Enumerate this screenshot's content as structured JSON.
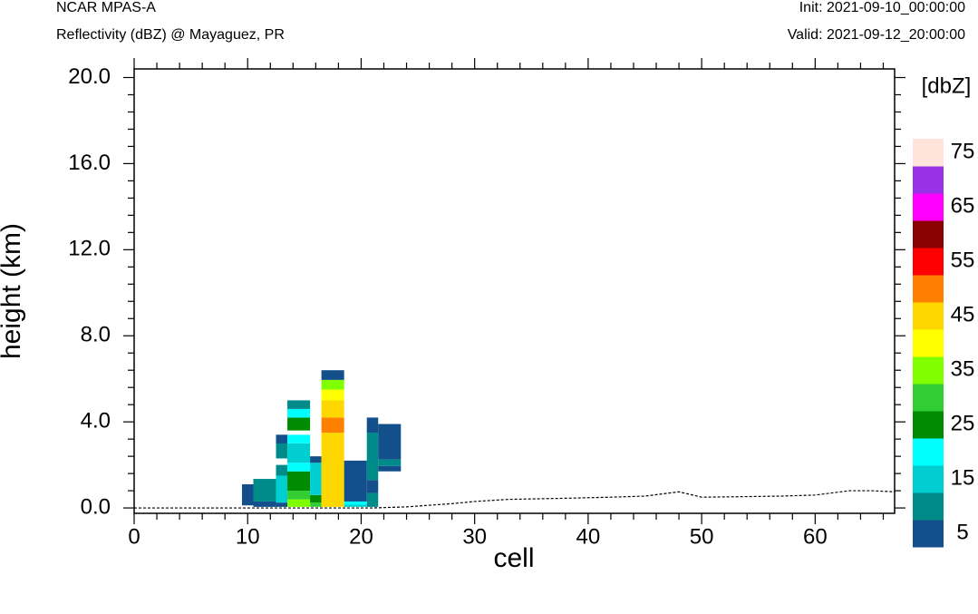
{
  "header": {
    "model": "NCAR MPAS-A",
    "subtitle": "Reflectivity (dBZ) @ Mayaguez, PR",
    "init": "Init: 2021-09-10_00:00:00",
    "valid": "Valid: 2021-09-12_20:00:00"
  },
  "chart_data": {
    "type": "heatmap",
    "title": "Reflectivity (dBZ) @ Mayaguez, PR",
    "xlabel": "cell",
    "ylabel": "height (km)",
    "xlim": [
      0,
      67
    ],
    "ylim": [
      -0.25,
      20.4
    ],
    "xticks": [
      "0",
      "10",
      "20",
      "30",
      "40",
      "50",
      "60"
    ],
    "yticks": [
      "0.0",
      "4.0",
      "8.0",
      "12.0",
      "16.0",
      "20.0"
    ],
    "colorbar": {
      "label": "[dbZ]",
      "levels": [
        5,
        10,
        15,
        20,
        25,
        30,
        35,
        40,
        45,
        50,
        55,
        60,
        65,
        70,
        75
      ],
      "tick_labels": [
        "5",
        "15",
        "25",
        "35",
        "45",
        "55",
        "65",
        "75"
      ],
      "colors": [
        "#134f8a",
        "#008b8b",
        "#00ced1",
        "#00ffff",
        "#008b00",
        "#32cd32",
        "#7fff00",
        "#ffff00",
        "#ffd700",
        "#ff7f00",
        "#ff0000",
        "#8b0000",
        "#ff00ff",
        "#9932e6",
        "#ffe4dc"
      ]
    },
    "cells": [
      {
        "x0": 9.5,
        "x1": 10.5,
        "y0": 0.12,
        "y1": 1.1,
        "dbz": 5
      },
      {
        "x0": 10.5,
        "x1": 12.5,
        "y0": 0.05,
        "y1": 0.3,
        "dbz": 5
      },
      {
        "x0": 10.5,
        "x1": 12.5,
        "y0": 0.3,
        "y1": 1.35,
        "dbz": 10
      },
      {
        "x0": 12.5,
        "x1": 13.5,
        "y0": 0.05,
        "y1": 0.25,
        "dbz": 5
      },
      {
        "x0": 12.5,
        "x1": 13.5,
        "y0": 0.25,
        "y1": 1.5,
        "dbz": 15
      },
      {
        "x0": 12.5,
        "x1": 13.5,
        "y0": 1.5,
        "y1": 2.0,
        "dbz": 10
      },
      {
        "x0": 12.5,
        "x1": 13.5,
        "y0": 2.3,
        "y1": 3.4,
        "dbz": 10
      },
      {
        "x0": 12.5,
        "x1": 13.5,
        "y0": 3.0,
        "y1": 3.4,
        "dbz": 5
      },
      {
        "x0": 13.5,
        "x1": 15.5,
        "y0": 0.05,
        "y1": 0.4,
        "dbz": 35
      },
      {
        "x0": 13.5,
        "x1": 15.5,
        "y0": 0.4,
        "y1": 0.8,
        "dbz": 30
      },
      {
        "x0": 13.5,
        "x1": 15.5,
        "y0": 0.8,
        "y1": 1.7,
        "dbz": 25
      },
      {
        "x0": 13.5,
        "x1": 15.5,
        "y0": 1.7,
        "y1": 2.1,
        "dbz": 20
      },
      {
        "x0": 13.5,
        "x1": 15.5,
        "y0": 2.1,
        "y1": 3.0,
        "dbz": 15
      },
      {
        "x0": 13.5,
        "x1": 15.5,
        "y0": 3.0,
        "y1": 3.4,
        "dbz": 20
      },
      {
        "x0": 13.5,
        "x1": 15.5,
        "y0": 3.6,
        "y1": 4.2,
        "dbz": 25
      },
      {
        "x0": 13.5,
        "x1": 15.5,
        "y0": 4.2,
        "y1": 4.6,
        "dbz": 20
      },
      {
        "x0": 13.5,
        "x1": 15.5,
        "y0": 4.6,
        "y1": 5.0,
        "dbz": 10
      },
      {
        "x0": 15.5,
        "x1": 16.5,
        "y0": 0.05,
        "y1": 0.25,
        "dbz": 30
      },
      {
        "x0": 15.5,
        "x1": 16.5,
        "y0": 0.25,
        "y1": 0.6,
        "dbz": 25
      },
      {
        "x0": 15.5,
        "x1": 16.5,
        "y0": 0.6,
        "y1": 2.1,
        "dbz": 15
      },
      {
        "x0": 15.5,
        "x1": 16.5,
        "y0": 2.1,
        "y1": 2.4,
        "dbz": 5
      },
      {
        "x0": 16.5,
        "x1": 18.5,
        "y0": 0.05,
        "y1": 3.5,
        "dbz": 45
      },
      {
        "x0": 16.5,
        "x1": 18.5,
        "y0": 3.5,
        "y1": 4.2,
        "dbz": 50
      },
      {
        "x0": 16.5,
        "x1": 18.5,
        "y0": 4.2,
        "y1": 5.0,
        "dbz": 45
      },
      {
        "x0": 16.5,
        "x1": 18.5,
        "y0": 5.0,
        "y1": 5.5,
        "dbz": 40
      },
      {
        "x0": 16.5,
        "x1": 18.5,
        "y0": 5.5,
        "y1": 5.95,
        "dbz": 35
      },
      {
        "x0": 16.5,
        "x1": 18.5,
        "y0": 5.95,
        "y1": 6.4,
        "dbz": 5
      },
      {
        "x0": 18.5,
        "x1": 20.5,
        "y0": 0.05,
        "y1": 0.15,
        "dbz": 15
      },
      {
        "x0": 18.5,
        "x1": 20.5,
        "y0": 0.15,
        "y1": 0.3,
        "dbz": 20
      },
      {
        "x0": 18.5,
        "x1": 20.5,
        "y0": 0.3,
        "y1": 2.2,
        "dbz": 5
      },
      {
        "x0": 20.5,
        "x1": 21.5,
        "y0": 0.05,
        "y1": 0.7,
        "dbz": 10
      },
      {
        "x0": 20.5,
        "x1": 21.5,
        "y0": 0.7,
        "y1": 1.3,
        "dbz": 5
      },
      {
        "x0": 20.5,
        "x1": 21.5,
        "y0": 1.3,
        "y1": 3.5,
        "dbz": 10
      },
      {
        "x0": 20.5,
        "x1": 21.5,
        "y0": 3.5,
        "y1": 4.2,
        "dbz": 5
      },
      {
        "x0": 21.5,
        "x1": 23.5,
        "y0": 1.7,
        "y1": 1.95,
        "dbz": 5
      },
      {
        "x0": 21.5,
        "x1": 23.5,
        "y0": 1.95,
        "y1": 2.25,
        "dbz": 10
      },
      {
        "x0": 21.5,
        "x1": 23.5,
        "y0": 2.25,
        "y1": 3.9,
        "dbz": 5
      }
    ],
    "terrain": {
      "x": [
        0,
        10,
        21,
        24,
        28,
        30,
        33,
        38,
        42,
        45,
        48,
        50,
        53,
        57,
        60,
        63,
        65,
        67
      ],
      "y": [
        0.0,
        0.0,
        0.0,
        0.05,
        0.2,
        0.3,
        0.4,
        0.45,
        0.5,
        0.55,
        0.75,
        0.5,
        0.52,
        0.55,
        0.6,
        0.8,
        0.8,
        0.75
      ]
    }
  }
}
